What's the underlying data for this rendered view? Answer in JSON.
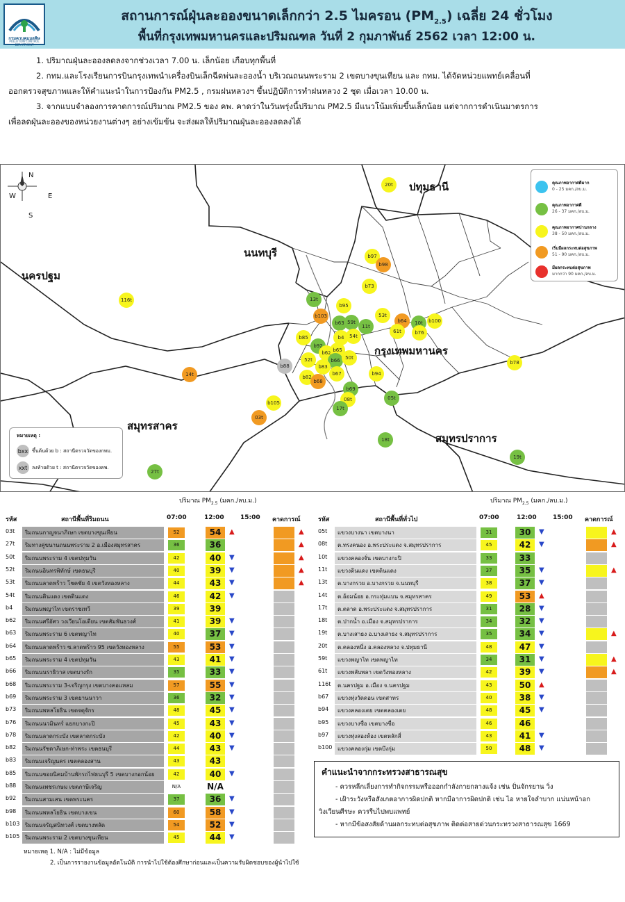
{
  "header": {
    "logo_text": "กรมควบคุมมลพิษ",
    "logo_sub": "POLLUTION CONTROL DEPARTMENT",
    "title_line1": "สถานการณ์ฝุ่นละอองขนาดเล็กกว่า 2.5 ไมครอน (PM",
    "title_line1_sub": "2.5",
    "title_line1_end": ") เฉลี่ย 24 ชั่วโมง",
    "title_line2": "พื้นที่กรุงเทพมหานครและปริมณฑล วันที่ 2 กุมภาพันธ์ 2562 เวลา 12:00 น."
  },
  "notes": [
    "1. ปริมาณฝุ่นละอองลดลงจากช่วงเวลา 7.00 น. เล็กน้อย เกือบทุกพื้นที่",
    "2. กทม.และโรงเรียนการบินกรุงเทพนำเครื่องบินเล็กฉีดพ่นละอองน้ำ บริเวณถนนพระราม 2 เขตบางขุนเทียน และ กทม. ได้จัดหน่วยแพทย์เคลื่อนที่",
    "ออกตรวจสุขภาพและให้คำแนะนำในการป้องกัน PM2.5 , กรมฝนหลวงฯ ขึ้นปฏิบัติการทำฝนหลวง 2 ชุด เมื่อเวลา 10.00 น.",
    "3. จากแบบจำลองการคาดการณ์ปริมาณ PM2.5 ของ คพ. คาดว่าในวันพรุ่งนี้ปริมาณ PM2.5 มีแนวโน้มเพิ่มขึ้นเล็กน้อย แต่จากการดำเนินมาตรการ",
    "เพื่อลดฝุ่นละอองของหน่วยงานต่างๆ อย่างเข้มข้น จะส่งผลให้ปริมาณฝุ่นละอองลดลงได้"
  ],
  "map": {
    "compass": {
      "n": "N",
      "s": "S",
      "e": "E",
      "w": "W"
    },
    "provinces": {
      "pathum": "ปทุมธานี",
      "nonthaburi": "นนทบุรี",
      "nakhon_pathom": "นครปฐม",
      "bangkok": "กรุงเทพมหานคร",
      "samut_sakhon": "สมุทรสาคร",
      "samut_prakan": "สมุทรปราการ"
    },
    "legend": [
      {
        "title": "คุณภาพอากาศดีมาก",
        "range": "0 - 25 มคก./ลบ.ม.",
        "color": "#3cc3ef"
      },
      {
        "title": "คุณภาพอากาศดี",
        "range": "26 - 37 มคก./ลบ.ม.",
        "color": "#76c043"
      },
      {
        "title": "คุณภาพอากาศปานกลาง",
        "range": "38 - 50 มคก./ลบ.ม.",
        "color": "#f7f51d"
      },
      {
        "title": "เริ่มมีผลกระทบต่อสุขภาพ",
        "range": "51 - 90 มคก./ลบ.ม.",
        "color": "#f19a22"
      },
      {
        "title": "มีผลกระทบต่อสุขภาพ",
        "range": "มากกว่า 90 มคก./ลบ.ม.",
        "color": "#e8312c"
      }
    ],
    "note_title": "หมายเหตุ :",
    "note_b_dot": "bxx",
    "note_b": "ขึ้นต้นด้วย b : สถานีตรวจวัดของกทม.",
    "note_t_dot": "xxt",
    "note_t": "ลงท้ายด้วย t : สถานีตรวจวัดของคพ.",
    "stations": [
      {
        "id": "20t",
        "c": "y"
      },
      {
        "id": "116t",
        "c": "y"
      },
      {
        "id": "b97",
        "c": "y"
      },
      {
        "id": "b98",
        "c": "o"
      },
      {
        "id": "b73",
        "c": "y"
      },
      {
        "id": "13t",
        "c": "g"
      },
      {
        "id": "b95",
        "c": "y"
      },
      {
        "id": "53t",
        "c": "y"
      },
      {
        "id": "b103",
        "c": "o"
      },
      {
        "id": "b63",
        "c": "g"
      },
      {
        "id": "59t",
        "c": "g"
      },
      {
        "id": "11t",
        "c": "g"
      },
      {
        "id": "b64",
        "c": "o"
      },
      {
        "id": "61t",
        "c": "y"
      },
      {
        "id": "10t",
        "c": "g"
      },
      {
        "id": "b100",
        "c": "y"
      },
      {
        "id": "b76",
        "c": "y"
      },
      {
        "id": "b85",
        "c": "y"
      },
      {
        "id": "b4",
        "c": "y"
      },
      {
        "id": "54t",
        "c": "y"
      },
      {
        "id": "b92",
        "c": "g"
      },
      {
        "id": "b62",
        "c": "y"
      },
      {
        "id": "b65",
        "c": "y"
      },
      {
        "id": "52t",
        "c": "y"
      },
      {
        "id": "b66",
        "c": "g"
      },
      {
        "id": "50t",
        "c": "y"
      },
      {
        "id": "b88",
        "c": "gray"
      },
      {
        "id": "b83",
        "c": "y"
      },
      {
        "id": "b67",
        "c": "y"
      },
      {
        "id": "b94",
        "c": "y"
      },
      {
        "id": "b78",
        "c": "y"
      },
      {
        "id": "14t",
        "c": "o"
      },
      {
        "id": "b82",
        "c": "y"
      },
      {
        "id": "b68",
        "c": "o"
      },
      {
        "id": "b69",
        "c": "g"
      },
      {
        "id": "08t",
        "c": "y"
      },
      {
        "id": "05t",
        "c": "g"
      },
      {
        "id": "b105",
        "c": "y"
      },
      {
        "id": "17t",
        "c": "g"
      },
      {
        "id": "03t",
        "c": "o"
      },
      {
        "id": "18t",
        "c": "g"
      },
      {
        "id": "19t",
        "c": "g"
      },
      {
        "id": "27t",
        "c": "g"
      }
    ]
  },
  "tables": {
    "units_left": "ปริมาณ PM",
    "units_sub": "2.5",
    "units_end": " (มคก./ลบ.ม.)",
    "units_right": "ปริมาณ PM",
    "headers": {
      "code": "รหัส",
      "name_left": "สถานีพื้นที่ริมถนน",
      "name_right": "สถานีพื้นที่ทั่วไป",
      "t07": "07:00",
      "t12": "12:00",
      "t15": "15:00",
      "forecast": "คาดการณ์"
    },
    "left": [
      {
        "code": "03t",
        "name": "ริมถนนกาญจนาภิเษก เขตบางขุนเทียน",
        "v7": "52",
        "c7": "o",
        "v12": "54",
        "c12": "o",
        "arrow": "up",
        "fc": "o",
        "fca": "up"
      },
      {
        "code": "27t",
        "name": "ริมทางคู่ขนานถนนพระราม 2 อ.เมืองสมุทรสาคร",
        "v7": "36",
        "c7": "g",
        "v12": "36",
        "c12": "g",
        "arrow": "",
        "fc": "o",
        "fca": "up"
      },
      {
        "code": "50t",
        "name": "ริมถนนพระราม 4 เขตปทุมวัน",
        "v7": "42",
        "c7": "y",
        "v12": "40",
        "c12": "y",
        "arrow": "down",
        "fc": "o",
        "fca": "up"
      },
      {
        "code": "52t",
        "name": "ริมถนนอินทรพิทักษ์ เขตธนบุรี",
        "v7": "40",
        "c7": "y",
        "v12": "39",
        "c12": "y",
        "arrow": "down",
        "fc": "o",
        "fca": "up"
      },
      {
        "code": "53t",
        "name": "ริมถนนลาดพร้าว โชคชัย 4 เขตวังทองหลาง",
        "v7": "44",
        "c7": "y",
        "v12": "43",
        "c12": "y",
        "arrow": "down",
        "fc": "o",
        "fca": "up"
      },
      {
        "code": "54t",
        "name": "ริมถนนดินแดง เขตดินแดง",
        "v7": "46",
        "c7": "y",
        "v12": "42",
        "c12": "y",
        "arrow": "down",
        "fc": "gray",
        "fca": ""
      },
      {
        "code": "b4",
        "name": "ริมถนนพญาไท เขตราชเทวี",
        "v7": "39",
        "c7": "y",
        "v12": "39",
        "c12": "y",
        "arrow": "",
        "fc": "gray",
        "fca": ""
      },
      {
        "code": "b62",
        "name": "ริมถนนศรีอัศว วงเวียนโอเดียน เขตสัมพันธวงศ์",
        "v7": "41",
        "c7": "y",
        "v12": "39",
        "c12": "y",
        "arrow": "down",
        "fc": "gray",
        "fca": ""
      },
      {
        "code": "b63",
        "name": "ริมถนนพระราม 6 เขตพญาไท",
        "v7": "40",
        "c7": "y",
        "v12": "37",
        "c12": "g",
        "arrow": "down",
        "fc": "gray",
        "fca": ""
      },
      {
        "code": "b64",
        "name": "ริมถนนลาดพร้าว ซ.ลาดพร้าว 95 เขตวังทองหลาง",
        "v7": "55",
        "c7": "o",
        "v12": "53",
        "c12": "o",
        "arrow": "down",
        "fc": "gray",
        "fca": ""
      },
      {
        "code": "b65",
        "name": "ริมถนนพระราม 4 เขตปทุมวัน",
        "v7": "43",
        "c7": "y",
        "v12": "41",
        "c12": "y",
        "arrow": "down",
        "fc": "gray",
        "fca": ""
      },
      {
        "code": "b66",
        "name": "ริมถนนนราธิวาส เขตบางรัก",
        "v7": "35",
        "c7": "g",
        "v12": "33",
        "c12": "g",
        "arrow": "down",
        "fc": "gray",
        "fca": ""
      },
      {
        "code": "b68",
        "name": "ริมถนนพระราม 3-เจริญกรุง เขตบางคอแหลม",
        "v7": "57",
        "c7": "o",
        "v12": "55",
        "c12": "o",
        "arrow": "down",
        "fc": "gray",
        "fca": ""
      },
      {
        "code": "b69",
        "name": "ริมถนนพระราม 3 เขตยานนาวา",
        "v7": "36",
        "c7": "g",
        "v12": "32",
        "c12": "g",
        "arrow": "down",
        "fc": "gray",
        "fca": ""
      },
      {
        "code": "b73",
        "name": "ริมถนนพหลโยธิน เขตจตุจักร",
        "v7": "48",
        "c7": "y",
        "v12": "45",
        "c12": "y",
        "arrow": "down",
        "fc": "gray",
        "fca": ""
      },
      {
        "code": "b76",
        "name": "ริมถนนนวมินทร์ แยกบางกะปิ",
        "v7": "45",
        "c7": "y",
        "v12": "43",
        "c12": "y",
        "arrow": "down",
        "fc": "gray",
        "fca": ""
      },
      {
        "code": "b78",
        "name": "ริมถนนลาดกระบัง เขตลาดกระบัง",
        "v7": "42",
        "c7": "y",
        "v12": "40",
        "c12": "y",
        "arrow": "down",
        "fc": "gray",
        "fca": ""
      },
      {
        "code": "b82",
        "name": "ริมถนนรัชดาภิเษก-ท่าพระ เขตธนบุรี",
        "v7": "44",
        "c7": "y",
        "v12": "43",
        "c12": "y",
        "arrow": "down",
        "fc": "gray",
        "fca": ""
      },
      {
        "code": "b83",
        "name": "ริมถนนเจริญนคร เขตคลองสาน",
        "v7": "43",
        "c7": "y",
        "v12": "43",
        "c12": "y",
        "arrow": "",
        "fc": "gray",
        "fca": ""
      },
      {
        "code": "b85",
        "name": "ริมถนนซอยนิคมบ้านพักรถไฟธนบุรี 5 เขตบางกอกน้อย",
        "v7": "42",
        "c7": "y",
        "v12": "40",
        "c12": "y",
        "arrow": "down",
        "fc": "gray",
        "fca": ""
      },
      {
        "code": "b88",
        "name": "ริมถนนเพชรเกษม เขตภาษีเจริญ",
        "v7": "N/A",
        "c7": "w",
        "v12": "N/A",
        "c12": "w",
        "arrow": "",
        "fc": "gray",
        "fca": ""
      },
      {
        "code": "b92",
        "name": "ริมถนนสามเสน เขตพระนคร",
        "v7": "37",
        "c7": "g",
        "v12": "36",
        "c12": "g",
        "arrow": "down",
        "fc": "gray",
        "fca": ""
      },
      {
        "code": "b98",
        "name": "ริมถนนพหลโยธิน เขตบางเขน",
        "v7": "60",
        "c7": "o",
        "v12": "58",
        "c12": "o",
        "arrow": "down",
        "fc": "gray",
        "fca": ""
      },
      {
        "code": "b103",
        "name": "ริมถนนจรัญสนิทวงศ์ เขตบางพลัด",
        "v7": "54",
        "c7": "o",
        "v12": "52",
        "c12": "o",
        "arrow": "down",
        "fc": "gray",
        "fca": ""
      },
      {
        "code": "b105",
        "name": "ริมถนนพระราม 2 เขตบางขุนเทียน",
        "v7": "45",
        "c7": "y",
        "v12": "44",
        "c12": "y",
        "arrow": "down",
        "fc": "gray",
        "fca": ""
      }
    ],
    "right": [
      {
        "code": "05t",
        "name": "แขวงบางนา เขตบางนา",
        "v7": "31",
        "c7": "g",
        "v12": "30",
        "c12": "g",
        "arrow": "down",
        "fc": "y",
        "fca": "up"
      },
      {
        "code": "08t",
        "name": "ต.ทรงคนอง อ.พระประแดง จ.สมุทรปราการ",
        "v7": "45",
        "c7": "y",
        "v12": "42",
        "c12": "y",
        "arrow": "down",
        "fc": "o",
        "fca": "up"
      },
      {
        "code": "10t",
        "name": "แขวงคลองจั่น เขตบางกะปิ",
        "v7": "33",
        "c7": "g",
        "v12": "33",
        "c12": "g",
        "arrow": "",
        "fc": "gray",
        "fca": ""
      },
      {
        "code": "11t",
        "name": "แขวงดินแดง เขตดินแดง",
        "v7": "37",
        "c7": "g",
        "v12": "35",
        "c12": "g",
        "arrow": "down",
        "fc": "y",
        "fca": "up"
      },
      {
        "code": "13t",
        "name": "ต.บางกรวย อ.บางกรวย จ.นนทบุรี",
        "v7": "38",
        "c7": "y",
        "v12": "37",
        "c12": "g",
        "arrow": "down",
        "fc": "gray",
        "fca": ""
      },
      {
        "code": "14t",
        "name": "ต.อ้อมน้อย อ.กระทุ่มแบน จ.สมุทรสาคร",
        "v7": "49",
        "c7": "y",
        "v12": "53",
        "c12": "o",
        "arrow": "up",
        "fc": "gray",
        "fca": ""
      },
      {
        "code": "17t",
        "name": "ต.ตลาด อ.พระประแดง จ.สมุทรปราการ",
        "v7": "31",
        "c7": "g",
        "v12": "28",
        "c12": "g",
        "arrow": "down",
        "fc": "gray",
        "fca": ""
      },
      {
        "code": "18t",
        "name": "ต.ปากน้ำ อ.เมือง จ.สมุทรปราการ",
        "v7": "34",
        "c7": "g",
        "v12": "32",
        "c12": "g",
        "arrow": "down",
        "fc": "gray",
        "fca": ""
      },
      {
        "code": "19t",
        "name": "ต.บางเสาธง อ.บางเสาธง จ.สมุทรปราการ",
        "v7": "35",
        "c7": "g",
        "v12": "34",
        "c12": "g",
        "arrow": "down",
        "fc": "y",
        "fca": "up"
      },
      {
        "code": "20t",
        "name": "ต.คลองหนึ่ง อ.คลองหลวง จ.ปทุมธานี",
        "v7": "48",
        "c7": "y",
        "v12": "47",
        "c12": "y",
        "arrow": "down",
        "fc": "gray",
        "fca": ""
      },
      {
        "code": "59t",
        "name": "แขวงพญาไท เขตพญาไท",
        "v7": "34",
        "c7": "g",
        "v12": "31",
        "c12": "g",
        "arrow": "down",
        "fc": "y",
        "fca": "up"
      },
      {
        "code": "61t",
        "name": "แขวงพลับพลา เขตวังทองหลาง",
        "v7": "42",
        "c7": "y",
        "v12": "39",
        "c12": "y",
        "arrow": "down",
        "fc": "o",
        "fca": "up"
      },
      {
        "code": "116t",
        "name": "ต.นครปฐม อ.เมือง จ.นครปฐม",
        "v7": "43",
        "c7": "y",
        "v12": "50",
        "c12": "y",
        "arrow": "up",
        "fc": "gray",
        "fca": ""
      },
      {
        "code": "b67",
        "name": "แขวงทุ่งวัดดอน เขตสาทร",
        "v7": "40",
        "c7": "y",
        "v12": "38",
        "c12": "y",
        "arrow": "down",
        "fc": "gray",
        "fca": ""
      },
      {
        "code": "b94",
        "name": "แขวงคลองเตย เขตคลองเตย",
        "v7": "48",
        "c7": "y",
        "v12": "45",
        "c12": "y",
        "arrow": "down",
        "fc": "gray",
        "fca": ""
      },
      {
        "code": "b95",
        "name": "แขวงบางซื่อ เขตบางซื่อ",
        "v7": "46",
        "c7": "y",
        "v12": "46",
        "c12": "y",
        "arrow": "",
        "fc": "gray",
        "fca": ""
      },
      {
        "code": "b97",
        "name": "แขวงทุ่งสองห้อง เขตหลักสี่",
        "v7": "43",
        "c7": "y",
        "v12": "41",
        "c12": "y",
        "arrow": "down",
        "fc": "gray",
        "fca": ""
      },
      {
        "code": "b100",
        "name": "แขวงคลองกุ่ม เขตบึงกุ่ม",
        "v7": "50",
        "c7": "y",
        "v12": "48",
        "c12": "y",
        "arrow": "down",
        "fc": "gray",
        "fca": ""
      }
    ]
  },
  "advice": {
    "title": "คำแนะนำจากกระทรวงสาธารณสุข",
    "l1": "- ควรหลีกเลี่ยงการทำกิจกรรมหรือออกกำลังกายกลางแจ้ง เช่น ปั่นจักรยาน วิ่ง",
    "l2": "- เฝ้าระวังหรือสังเกตอาการผิดปกติ หากมีอาการผิดปกติ เช่น ไอ หายใจลำบาก แน่นหน้าอก",
    "l3": "วิงเวียนศีรษะ ควรรีบไปพบแพทย์",
    "l4": "- หากมีข้อสงสัยด้านผลกระทบต่อสุขภาพ ติดต่อสายด่วนกระทรวงสาธารณสุข 1669"
  },
  "footnote": {
    "l1": "หมายเหตุ 1. N/A : ไม่มีข้อมูล",
    "l2": "2. เป็นการรายงานข้อมูลอัตโนมัติ การนำไปใช้ต้องศึกษาก่อนและเป็นความรับผิดชอบของผู้นำไปใช้"
  },
  "colors": {
    "yellow": "#f7f51d",
    "green": "#76c043",
    "orange": "#f19a22",
    "gray": "#bfbfbf",
    "header_bg": "#a9dde8"
  }
}
